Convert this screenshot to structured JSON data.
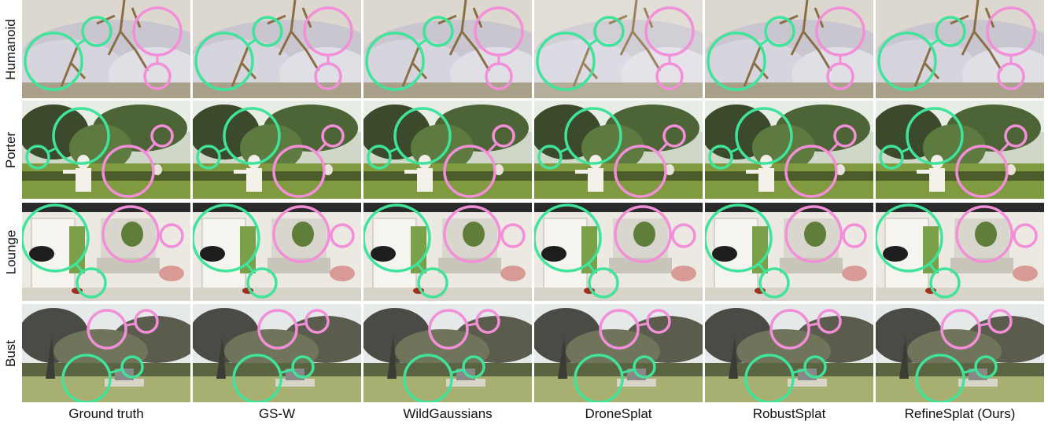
{
  "rows": [
    {
      "label": "Humanoid",
      "scene": "humanoid"
    },
    {
      "label": "Porter",
      "scene": "porter"
    },
    {
      "label": "Lounge",
      "scene": "lounge"
    },
    {
      "label": "Bust",
      "scene": "bust"
    }
  ],
  "columns": [
    {
      "label": "Ground truth"
    },
    {
      "label": "GS-W"
    },
    {
      "label": "WildGaussians"
    },
    {
      "label": "DroneSplat"
    },
    {
      "label": "RobustSplat"
    },
    {
      "label": "RefineSplat (Ours)"
    }
  ],
  "colors": {
    "green_circle": "#3fe39a",
    "pink_circle": "#f28fd8",
    "background": "#ffffff"
  }
}
